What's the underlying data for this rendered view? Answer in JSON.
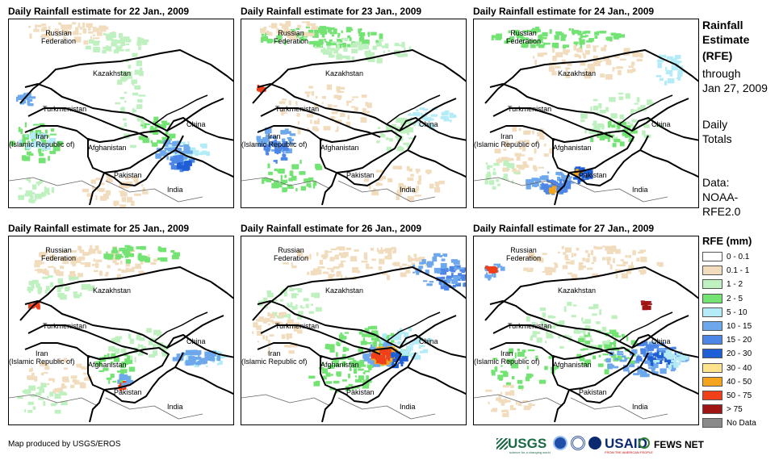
{
  "panels": [
    {
      "title": "Daily Rainfall estimate for 22 Jan., 2009"
    },
    {
      "title": "Daily Rainfall estimate for 23 Jan., 2009"
    },
    {
      "title": "Daily Rainfall estimate for 24 Jan., 2009"
    },
    {
      "title": "Daily Rainfall estimate for 25 Jan., 2009"
    },
    {
      "title": "Daily Rainfall estimate for 26 Jan., 2009"
    },
    {
      "title": "Daily Rainfall estimate for 27 Jan., 2009"
    }
  ],
  "map_labels": {
    "russia": "Russian\nFederation",
    "kazakhstan": "Kazakhstan",
    "turkmenistan": "Turkmenistan",
    "china": "China",
    "iran": "Iran\n(Islamic Republic of)",
    "afghanistan": "Afghanistan",
    "pakistan": "Pakistan",
    "india": "India"
  },
  "side_text": {
    "heading_line1": "Rainfall",
    "heading_line2": "Estimate",
    "heading_line3": "(RFE)",
    "through": "through",
    "date": "Jan 27, 2009",
    "daily1": "Daily",
    "daily2": "Totals",
    "data1": "Data:",
    "data2": "NOAA-",
    "data3": "RFE2.0"
  },
  "legend": {
    "title": "RFE (mm)",
    "items": [
      {
        "label": "0 - 0.1",
        "color": "#ffffff"
      },
      {
        "label": "0.1 - 1",
        "color": "#f1dcbd"
      },
      {
        "label": "1 - 2",
        "color": "#bff0bf"
      },
      {
        "label": "2 - 5",
        "color": "#73e373"
      },
      {
        "label": "5 - 10",
        "color": "#b3ecf6"
      },
      {
        "label": "10 - 15",
        "color": "#6ea8ec"
      },
      {
        "label": "15 - 20",
        "color": "#4d86e6"
      },
      {
        "label": "20 - 30",
        "color": "#1f5fd6"
      },
      {
        "label": "30 - 40",
        "color": "#fde48c"
      },
      {
        "label": "40 - 50",
        "color": "#f5a41e"
      },
      {
        "label": "50 - 75",
        "color": "#f0401a"
      },
      {
        "label": "> 75",
        "color": "#a01414"
      },
      {
        "label": "No Data",
        "color": "#8a8a8a"
      }
    ]
  },
  "credit": "Map produced by USGS/EROS",
  "logos": {
    "usgs": "USGS",
    "usgs_tagline": "science for a changing world",
    "usaid": "USAID",
    "usaid_tagline": "FROM THE AMERICAN PEOPLE",
    "fewsnet": "FEWS NET"
  }
}
